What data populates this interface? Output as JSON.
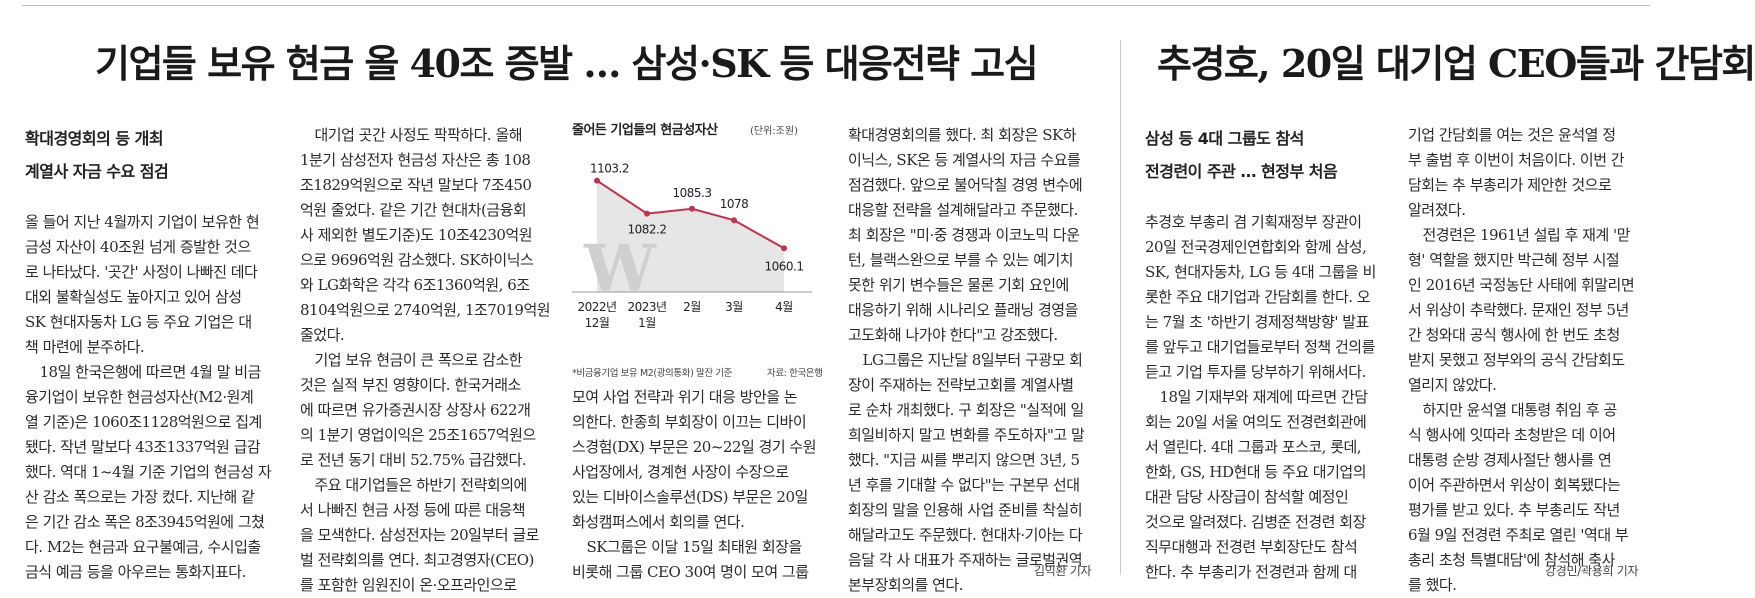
{
  "main_article": {
    "headline": "기업들 보유 현금 올 40조 증발 … 삼성·SK 등 대응전략 고심",
    "subheads": [
      "확대경영회의 등 개최",
      "계열사 자금 수요 점검"
    ],
    "col1": [
      "올 들어 지난 4월까지 기업이 보유한 현",
      "금성 자산이 40조원 넘게 증발한 것으",
      "로 나타났다. '곳간' 사정이 나빠진 데다",
      "대외 불확실성도 높아지고 있어 삼성",
      "SK 현대자동차 LG 등 주요 기업은 대",
      "책 마련에 분주하다.",
      "　18일 한국은행에 따르면 4월 말 비금",
      "융기업이 보유한 현금성자산(M2·원계",
      "열 기준)은 1060조1128억원으로 집계",
      "됐다. 작년 말보다 43조1337억원 급감",
      "했다. 역대 1~4월 기준 기업의 현금성 자",
      "산 감소 폭으로는 가장 컸다. 지난해 같",
      "은 기간 감소 폭은 8조3945억원에 그쳤",
      "다. M2는 현금과 요구불예금, 수시입출",
      "금식 예금 등을 아우르는 통화지표다."
    ],
    "col2": [
      "　대기업 곳간 사정도 팍팍하다. 올해",
      "1분기 삼성전자 현금성 자산은 총 108",
      "조1829억원으로 작년 말보다 7조450",
      "억원 줄었다. 같은 기간 현대차(금융회",
      "사 제외한 별도기준)도 10조4230억원",
      "으로 9696억원 감소했다. SK하이닉스",
      "와 LG화학은 각각 6조1360억원, 6조",
      "8104억원으로 2740억원, 1조7019억원",
      "줄었다.",
      "　기업 보유 현금이 큰 폭으로 감소한",
      "것은 실적 부진 영향이다. 한국거래소",
      "에 따르면 유가증권시장 상장사 622개",
      "의 1분기 영업이익은 25조1657억원으",
      "로 전년 동기 대비 52.75% 급감했다.",
      "　주요 대기업들은 하반기 전략회의에",
      "서 나빠진 현금 사정 등에 따른 대응책",
      "을 모색한다. 삼성전자는 20일부터 글로",
      "벌 전략회의를 연다. 최고경영자(CEO)",
      "를 포함한 임원진이 온·오프라인으로"
    ],
    "col3_below_chart": [
      "모여 사업 전략과 위기 대응 방안을 논",
      "의한다. 한종희 부회장이 이끄는 디바이",
      "스경험(DX) 부문은 20~22일 경기 수원",
      "사업장에서, 경계현 사장이 수장으로",
      "있는 디바이스솔루션(DS) 부문은 20일",
      "화성캠퍼스에서 회의를 연다.",
      "　SK그룹은 이달 15일 최태원 회장을",
      "비롯해 그룹 CEO 30여 명이 모여 그룹"
    ],
    "col4": [
      "확대경영회의를 했다. 최 회장은 SK하",
      "이닉스, SK온 등 계열사의 자금 수요를",
      "점검했다. 앞으로 불어닥칠 경영 변수에",
      "대응할 전략을 설계해달라고 주문했다.",
      "최 회장은 \"미·중 경쟁과 이코노믹 다운",
      "턴, 블랙스완으로 부를 수 있는 예기치",
      "못한 위기 변수들은 물론 기회 요인에",
      "대응하기 위해 시나리오 플래닝 경영을",
      "고도화해 나가야 한다\"고 강조했다.",
      "　LG그룹은 지난달 8일부터 구광모 회",
      "장이 주재하는 전략보고회를 계열사별",
      "로 순차 개최했다. 구 회장은 \"실적에 일",
      "희일비하지 말고 변화를 주도하자\"고 말",
      "했다. \"지금 씨를 뿌리지 않으면 3년, 5",
      "년 후를 기대할 수 없다\"는 구본무 선대",
      "회장의 말을 인용해 사업 준비를 착실히",
      "해달라고도 주문했다. 현대차·기아는 다",
      "음달 각 사 대표가 주재하는 글로벌권역",
      "본부장회의를 연다."
    ],
    "byline": "김익환 기자"
  },
  "chart": {
    "title": "줄어든 기업들의 현금성자산",
    "unit": "(단위:조원)",
    "footnote": "*비금융기업 보유 M2(광의통화) 말잔 기준",
    "source": "자료: 한국은행",
    "watermark": "W",
    "colors": {
      "line": "#c2324d",
      "area": "#e6e6e6",
      "marker": "#c2324d"
    }
  },
  "chart_data": {
    "type": "area",
    "title": "줄어든 기업들의 현금성자산",
    "unit": "(단위:조원)",
    "x": [
      [
        "2022년",
        "12월"
      ],
      [
        "2023년",
        "1월"
      ],
      [
        "2월"
      ],
      [
        "3월"
      ],
      [
        "4월"
      ]
    ],
    "values": [
      1103.2,
      1082.2,
      1085.3,
      1078,
      1060.1
    ],
    "labels": [
      "1103.2",
      "1082.2",
      "1085.3",
      "1078",
      "1060.1"
    ],
    "ylim": [
      1045,
      1110
    ],
    "grid": false,
    "legend": "none"
  },
  "side_article": {
    "headline": "추경호, 20일 대기업 CEO들과 간담회",
    "subheads": [
      "삼성 등 4대 그룹도 참석",
      "전경련이 주관 … 현정부 처음"
    ],
    "col1": [
      "추경호 부총리 겸 기획재정부 장관이",
      "20일 전국경제인연합회와 함께 삼성,",
      "SK, 현대자동차, LG 등 4대 그룹을 비",
      "롯한 주요 대기업과 간담회를 한다. 오",
      "는 7월 초 '하반기 경제정책방향' 발표",
      "를 앞두고 대기업들로부터 정책 건의를",
      "듣고 기업 투자를 당부하기 위해서다.",
      "　18일 기재부와 재계에 따르면 간담",
      "회는 20일 서울 여의도 전경련회관에",
      "서 열린다. 4대 그룹과 포스코, 롯데,",
      "한화, GS, HD현대 등 주요 대기업의",
      "대관 담당 사장급이 참석할 예정인",
      "것으로 알려졌다. 김병준 전경련 회장",
      "직무대행과 전경련 부회장단도 참석",
      "한다. 추 부총리가 전경련과 함께 대"
    ],
    "col2": [
      "기업 간담회를 여는 것은 윤석열 정",
      "부 출범 후 이번이 처음이다. 이번 간",
      "담회는 추 부총리가 제안한 것으로",
      "알려졌다.",
      "　전경련은 1961년 설립 후 재계 '맏",
      "형' 역할을 했지만 박근혜 정부 시절",
      "인 2016년 국정농단 사태에 휘말리면",
      "서 위상이 추락했다. 문재인 정부 5년",
      "간 청와대 공식 행사에 한 번도 초청",
      "받지 못했고 정부와의 공식 간담회도",
      "열리지 않았다.",
      "　하지만 윤석열 대통령 취임 후 공",
      "식 행사에 잇따라 초청받은 데 이어",
      "대통령 순방 경제사절단 행사를 연",
      "이어 주관하면서 위상이 회복됐다는",
      "평가를 받고 있다. 추 부총리도 작년",
      "6월 9일 전경련 주최로 열린 '역대 부",
      "총리 초청 특별대담'에 참석해 축사",
      "를 했다."
    ],
    "byline": "강경민/곽용희 기자"
  }
}
